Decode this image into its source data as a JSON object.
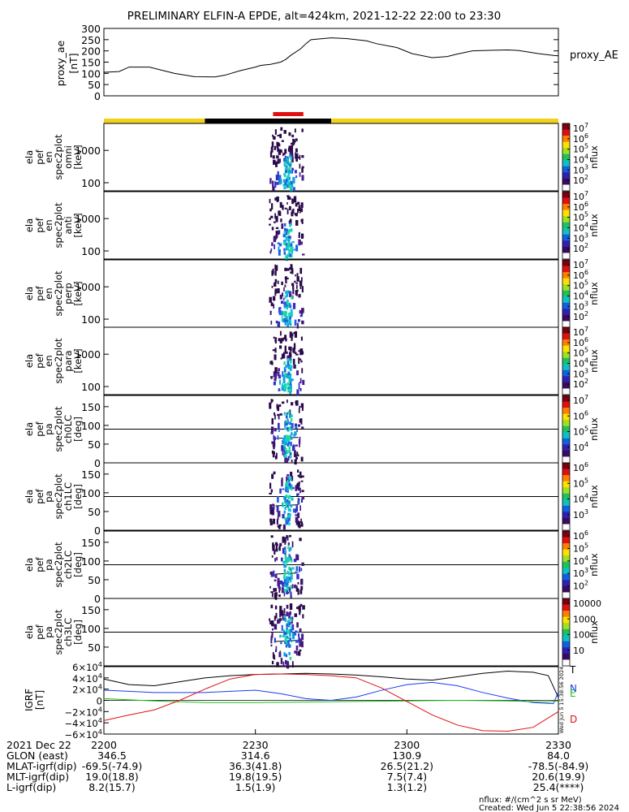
{
  "title": "PRELIMINARY ELFIN-A EPDE, alt=424km, 2021-12-22 22:00 to 23:30",
  "colors": {
    "state_bar_yellow": "#f5d21a",
    "state_bar_black": "#000000",
    "science_zone_red": "#e01010",
    "grf_T": "#000000",
    "grf_N": "#1a3cf0",
    "grf_E": "#20c020",
    "grf_D": "#e01010"
  },
  "chart_data": [
    {
      "id": "proxy_ae",
      "type": "line",
      "ylabel": "proxy_ae [nT]",
      "yticks": [
        "300",
        "250",
        "200",
        "150",
        "100",
        "50",
        "0"
      ],
      "ylim": [
        0,
        300
      ],
      "legend": "proxy_AE",
      "series": [
        {
          "name": "proxy_AE",
          "x_minutes": [
            0,
            6,
            10,
            18,
            28,
            36,
            44,
            48,
            54,
            60,
            62,
            64,
            66,
            70,
            72,
            74,
            78,
            80,
            82,
            90,
            96,
            104,
            108,
            116,
            122,
            130,
            136,
            140,
            146,
            154,
            160,
            164,
            168,
            172,
            178,
            180
          ],
          "values": [
            105,
            108,
            128,
            128,
            100,
            85,
            84,
            92,
            112,
            128,
            135,
            138,
            140,
            150,
            162,
            180,
            210,
            232,
            250,
            258,
            255,
            245,
            232,
            215,
            188,
            170,
            175,
            186,
            200,
            203,
            204,
            202,
            195,
            188,
            180,
            178
          ]
        }
      ]
    },
    {
      "id": "energy_spectrograms",
      "type": "heatmap",
      "panels": [
        {
          "ylabel": [
            "ela",
            "pef",
            "en",
            "spec2plot",
            "omni",
            "[keV]"
          ],
          "ytick_labels": [
            "1000",
            "100"
          ]
        },
        {
          "ylabel": [
            "ela",
            "pef",
            "en",
            "spec2plot",
            "anti",
            "[keV]"
          ],
          "ytick_labels": [
            "1000",
            "100"
          ]
        },
        {
          "ylabel": [
            "ela",
            "pef",
            "en",
            "spec2plot",
            "perp",
            "[keV]"
          ],
          "ytick_labels": [
            "1000",
            "100"
          ]
        },
        {
          "ylabel": [
            "ela",
            "pef",
            "en",
            "spec2plot",
            "para",
            "[keV]"
          ],
          "ytick_labels": [
            "1000",
            "100"
          ]
        }
      ],
      "colorbar_label": "nflux",
      "colorbar_ticks": [
        "10^7",
        "10^6",
        "10^5",
        "10^4",
        "10^3",
        "10^2"
      ]
    },
    {
      "id": "pitch_angle_spectrograms",
      "type": "heatmap",
      "panels": [
        {
          "ylabel": [
            "ela",
            "pef",
            "pa",
            "spec2plot",
            "ch0LC",
            "[deg]"
          ],
          "ytick_labels": [
            "150",
            "100",
            "50",
            "0"
          ],
          "colorbar_ticks": [
            "10^7",
            "10^6",
            "10^5",
            "10^4"
          ]
        },
        {
          "ylabel": [
            "ela",
            "pef",
            "pa",
            "spec2plot",
            "ch1LC",
            "[deg]"
          ],
          "ytick_labels": [
            "150",
            "100",
            "50",
            "0"
          ],
          "colorbar_ticks": [
            "10^6",
            "10^5",
            "10^4",
            "10^3"
          ]
        },
        {
          "ylabel": [
            "ela",
            "pef",
            "pa",
            "spec2plot",
            "ch2LC",
            "[deg]"
          ],
          "ytick_labels": [
            "150",
            "100",
            "50",
            "0"
          ],
          "colorbar_ticks": [
            "10^6",
            "10^5",
            "10^4",
            "10^3",
            "10^2"
          ]
        },
        {
          "ylabel": [
            "ela",
            "pef",
            "pa",
            "spec2plot",
            "ch3LC",
            "[deg]"
          ],
          "ytick_labels": [
            "150",
            "100",
            "50"
          ],
          "colorbar_ticks": [
            "10000",
            "1000",
            "100",
            "10"
          ]
        }
      ],
      "colorbar_label": "nflux"
    },
    {
      "id": "igrf",
      "type": "line",
      "ylabel": "IGRF [nT]",
      "ytick_labels": [
        "6×10^4",
        "4×10^4",
        "2×10^4",
        "0",
        "−2×10^4",
        "−4×10^4",
        "−6×10^4"
      ],
      "ylim": [
        -60000,
        60000
      ],
      "legend": [
        "T",
        "N",
        "E",
        "D"
      ],
      "series": [
        {
          "name": "T",
          "x_minutes": [
            0,
            10,
            20,
            30,
            40,
            50,
            60,
            70,
            80,
            90,
            100,
            110,
            120,
            130,
            140,
            150,
            160,
            170,
            176,
            180
          ],
          "values": [
            38000,
            28000,
            26000,
            33000,
            40000,
            44000,
            46000,
            47000,
            48000,
            47000,
            45000,
            42000,
            38000,
            36000,
            42000,
            48000,
            52000,
            50000,
            44000,
            5000
          ]
        },
        {
          "name": "N",
          "x_minutes": [
            0,
            10,
            20,
            30,
            40,
            50,
            60,
            70,
            80,
            90,
            100,
            110,
            120,
            130,
            140,
            150,
            160,
            170,
            178,
            180
          ],
          "values": [
            18000,
            16000,
            14000,
            14000,
            14000,
            16000,
            18000,
            12000,
            3000,
            0,
            6000,
            18000,
            28000,
            32000,
            26000,
            14000,
            4000,
            -4000,
            -6000,
            15000
          ]
        },
        {
          "name": "E",
          "x_minutes": [
            0,
            20,
            40,
            60,
            80,
            100,
            120,
            140,
            160,
            176,
            180
          ],
          "values": [
            3000,
            -1000,
            -4000,
            -4000,
            -3000,
            -2000,
            -1000,
            0,
            -1000,
            -3000,
            -1000
          ]
        },
        {
          "name": "D",
          "x_minutes": [
            0,
            10,
            20,
            30,
            40,
            50,
            60,
            70,
            80,
            90,
            100,
            110,
            120,
            130,
            140,
            150,
            160,
            170,
            180
          ],
          "values": [
            -36000,
            -26000,
            -17000,
            0,
            20000,
            38000,
            46000,
            47000,
            46000,
            44000,
            40000,
            22000,
            -2000,
            -26000,
            -44000,
            -54000,
            -55000,
            -48000,
            -20000
          ]
        }
      ]
    }
  ],
  "x_axis": {
    "tick_labels": [
      "2200",
      "2230",
      "2300",
      "2330"
    ],
    "date": "2021 Dec 22",
    "rows": [
      {
        "label": "GLON (east)",
        "values": [
          "346.5",
          "314.6",
          "130.9",
          "84.0"
        ]
      },
      {
        "label": "MLAT-igrf(dip)",
        "values": [
          "-69.5(-74.9)",
          "36.3(41.8)",
          "26.5(21.2)",
          "-78.5(-84.9)"
        ]
      },
      {
        "label": "MLT-igrf(dip)",
        "values": [
          "19.0(18.8)",
          "19.8(19.5)",
          "7.5(7.4)",
          "20.6(19.9)"
        ]
      },
      {
        "label": "L-igrf(dip)",
        "values": [
          "8.2(15.7)",
          "1.5(1.9)",
          "1.3(1.2)",
          "25.4(****)"
        ]
      }
    ]
  },
  "footer": {
    "units": "nflux: #/(cm^2 s sr MeV)",
    "created": "Created: Wed Jun  5 22:38:56 2024",
    "side_stamp": "Wed Jun  5 15:38:56 2024"
  }
}
